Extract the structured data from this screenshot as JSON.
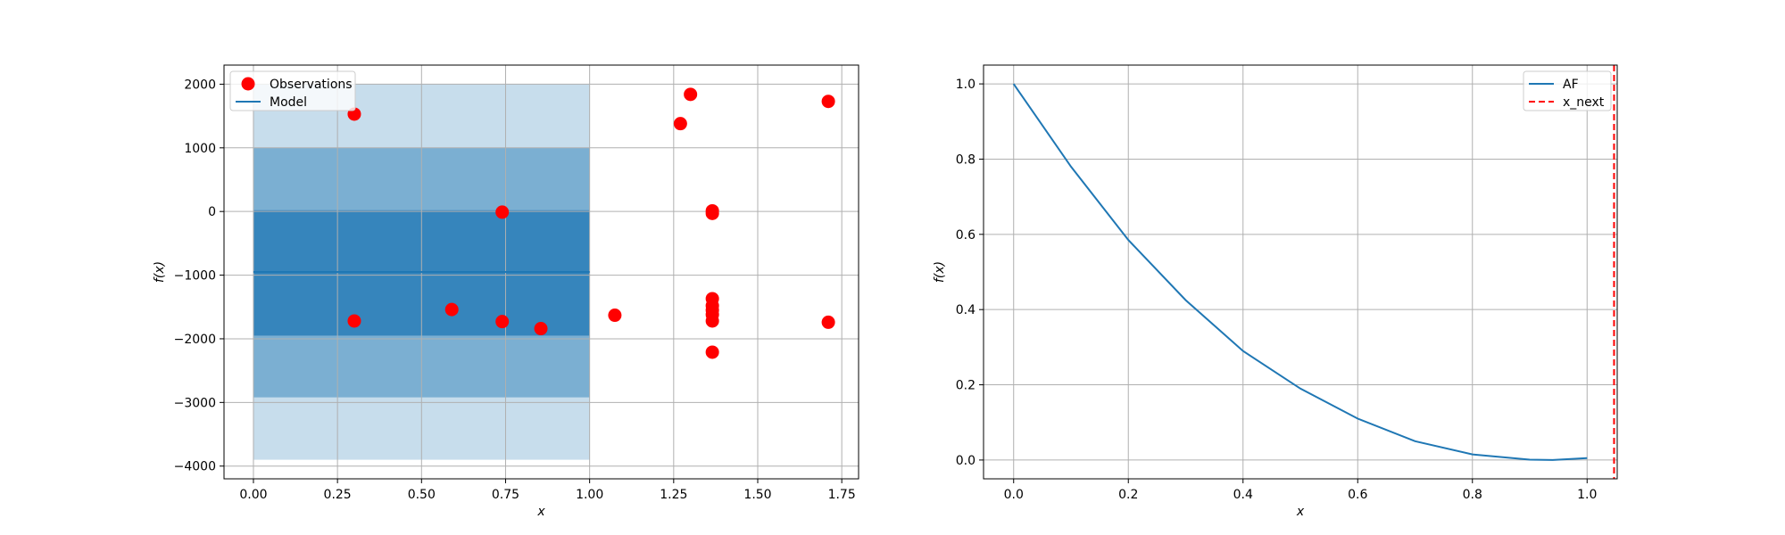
{
  "chart_data": [
    {
      "type": "scatter",
      "xlabel": "x",
      "ylabel": "f(x)",
      "xlim": [
        -0.0875,
        1.8
      ],
      "ylim": [
        -4200,
        2300
      ],
      "xticks": [
        0.0,
        0.25,
        0.5,
        0.75,
        1.0,
        1.25,
        1.5,
        1.75
      ],
      "xtick_labels": [
        "0.00",
        "0.25",
        "0.50",
        "0.75",
        "1.00",
        "1.25",
        "1.50",
        "1.75"
      ],
      "yticks": [
        -4000,
        -3000,
        -2000,
        -1000,
        0,
        1000,
        2000
      ],
      "ytick_labels": [
        "−4000",
        "−3000",
        "−2000",
        "−1000",
        "0",
        "1000",
        "2000"
      ],
      "grid": true,
      "legend": {
        "position": "top-left",
        "entries": [
          "Observations",
          "Model"
        ]
      },
      "model": {
        "name": "Model",
        "x": [
          0.0,
          1.0
        ],
        "mean": -950,
        "bands": [
          {
            "lower": -3900,
            "upper": 2000,
            "alpha": 0.25
          },
          {
            "lower": -2920,
            "upper": 1000,
            "alpha": 0.45
          },
          {
            "lower": -1950,
            "upper": 20,
            "alpha": 0.75
          }
        ],
        "color": "#1f77b4"
      },
      "series": [
        {
          "name": "Observations",
          "color": "#ff0000",
          "points": [
            [
              0.3,
              1530
            ],
            [
              0.3,
              -1720
            ],
            [
              0.59,
              -1540
            ],
            [
              0.74,
              -10
            ],
            [
              0.74,
              -1730
            ],
            [
              0.855,
              -1840
            ],
            [
              1.075,
              -1630
            ],
            [
              1.27,
              1380
            ],
            [
              1.3,
              1840
            ],
            [
              1.365,
              10
            ],
            [
              1.365,
              -30
            ],
            [
              1.365,
              -1370
            ],
            [
              1.365,
              -1480
            ],
            [
              1.365,
              -1550
            ],
            [
              1.365,
              -1620
            ],
            [
              1.365,
              -1720
            ],
            [
              1.365,
              -2210
            ],
            [
              1.71,
              1730
            ],
            [
              1.71,
              -1740
            ]
          ]
        }
      ]
    },
    {
      "type": "line",
      "xlabel": "x",
      "ylabel": "f(x)",
      "xlim": [
        -0.0525,
        1.0525
      ],
      "ylim": [
        -0.05,
        1.05
      ],
      "xticks": [
        0.0,
        0.2,
        0.4,
        0.6,
        0.8,
        1.0
      ],
      "xtick_labels": [
        "0.0",
        "0.2",
        "0.4",
        "0.6",
        "0.8",
        "1.0"
      ],
      "yticks": [
        0.0,
        0.2,
        0.4,
        0.6,
        0.8,
        1.0
      ],
      "ytick_labels": [
        "0.0",
        "0.2",
        "0.4",
        "0.6",
        "0.8",
        "1.0"
      ],
      "grid": true,
      "legend": {
        "position": "top-right",
        "entries": [
          "AF",
          "x_next"
        ]
      },
      "series": [
        {
          "name": "AF",
          "color": "#1f77b4",
          "x": [
            0.0,
            0.1,
            0.2,
            0.3,
            0.4,
            0.5,
            0.6,
            0.7,
            0.8,
            0.9,
            0.94,
            1.0
          ],
          "y": [
            1.0,
            0.78,
            0.585,
            0.425,
            0.29,
            0.19,
            0.11,
            0.05,
            0.015,
            0.001,
            0.0,
            0.005
          ]
        }
      ],
      "vline": {
        "name": "x_next",
        "x": 1.047,
        "color": "#ff0000",
        "style": "dashed"
      }
    }
  ]
}
